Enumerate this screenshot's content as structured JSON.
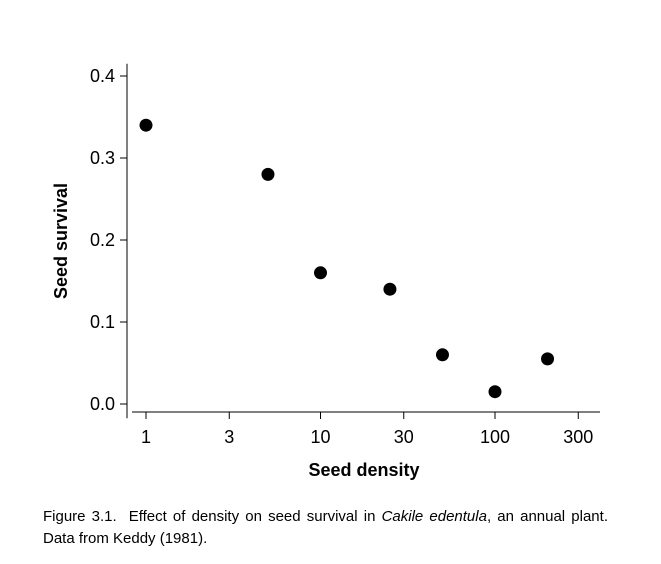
{
  "chart_data": {
    "type": "scatter",
    "x_scale": "log",
    "x": [
      1,
      5,
      10,
      25,
      50,
      100,
      200
    ],
    "y": [
      0.34,
      0.28,
      0.16,
      0.14,
      0.06,
      0.015,
      0.055
    ],
    "xlabel": "Seed density",
    "ylabel": "Seed survival",
    "xlim": [
      0.8,
      350
    ],
    "ylim": [
      -0.01,
      0.41
    ],
    "x_ticks": [
      1,
      3,
      10,
      30,
      100,
      300
    ],
    "x_tick_labels": [
      "1",
      "3",
      "10",
      "30",
      "100",
      "300"
    ],
    "y_ticks": [
      0.0,
      0.1,
      0.2,
      0.3,
      0.4
    ],
    "y_tick_labels": [
      "0.0",
      "0.1",
      "0.2",
      "0.3",
      "0.4"
    ],
    "grid": false,
    "legend": "none",
    "marker_color": "#000000"
  },
  "caption": {
    "figure_number": "Figure 3.1.",
    "text_before": "Effect of density on seed survival in ",
    "species": "Cakile edentula",
    "text_after": ", an annual plant. Data from Keddy (1981)."
  }
}
